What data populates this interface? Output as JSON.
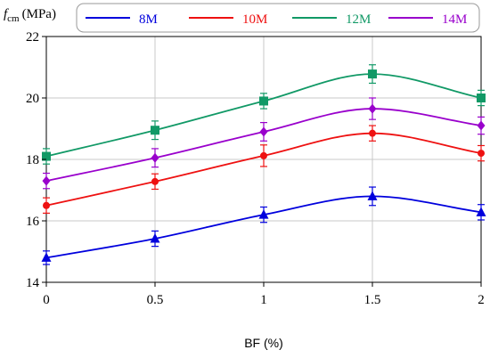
{
  "chart_data": {
    "type": "line",
    "ylabel_main": "f",
    "ylabel_sub": "cm",
    "ylabel_unit": "(MPa)",
    "xlabel": "BF (%)",
    "x": [
      0,
      0.5,
      1,
      1.5,
      2
    ],
    "x_tick_labels": [
      "0",
      "0.5",
      "1",
      "1.5",
      "2"
    ],
    "xlim": [
      0,
      2
    ],
    "ylim": [
      14,
      22
    ],
    "y_ticks": [
      14,
      16,
      18,
      20,
      22
    ],
    "y_tick_labels": [
      "14",
      "16",
      "18",
      "20",
      "22"
    ],
    "grid": true,
    "legend_position": "top",
    "series": [
      {
        "name": "8M",
        "color": "#0000dd",
        "marker": "triangle",
        "values": [
          14.8,
          15.42,
          16.2,
          16.8,
          16.28
        ],
        "errors": [
          0.22,
          0.25,
          0.25,
          0.3,
          0.25
        ]
      },
      {
        "name": "10M",
        "color": "#ee1111",
        "marker": "circle",
        "values": [
          16.5,
          17.28,
          18.12,
          18.85,
          18.2
        ],
        "errors": [
          0.25,
          0.25,
          0.35,
          0.25,
          0.25
        ]
      },
      {
        "name": "12M",
        "color": "#119966",
        "marker": "square",
        "values": [
          18.1,
          18.95,
          19.9,
          20.78,
          20.0
        ],
        "errors": [
          0.25,
          0.3,
          0.25,
          0.3,
          0.25
        ]
      },
      {
        "name": "14M",
        "color": "#9900cc",
        "marker": "diamond",
        "values": [
          17.3,
          18.05,
          18.9,
          19.65,
          19.1
        ],
        "errors": [
          0.25,
          0.3,
          0.3,
          0.35,
          0.28
        ]
      }
    ]
  }
}
